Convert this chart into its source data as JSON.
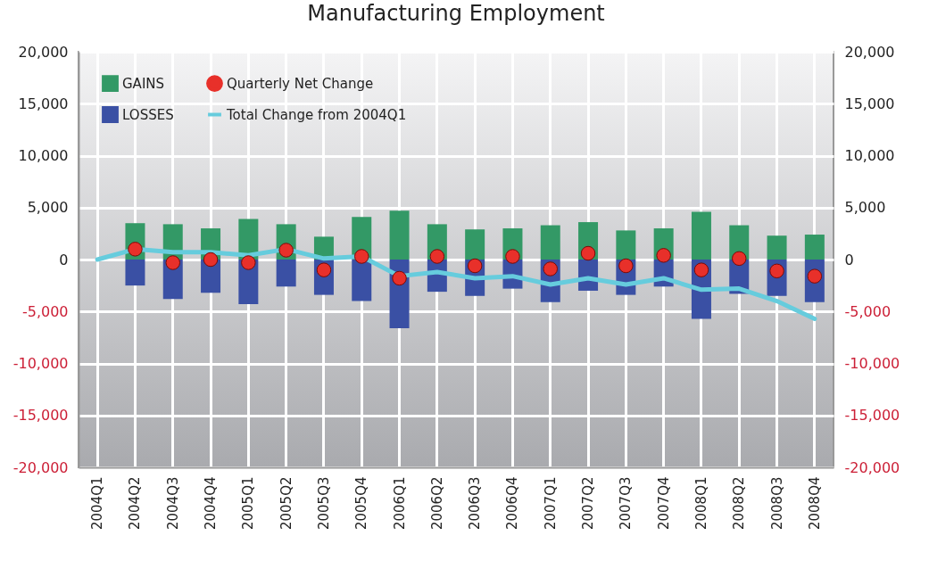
{
  "chart_data": {
    "type": "bar",
    "title": "Manufacturing Employment",
    "stacked": true,
    "categories": [
      "2004Q1",
      "2004Q2",
      "2004Q3",
      "2004Q4",
      "2005Q1",
      "2005Q2",
      "2005Q3",
      "2005Q4",
      "2006Q1",
      "2006Q2",
      "2006Q3",
      "2006Q4",
      "2007Q1",
      "2007Q2",
      "2007Q3",
      "2007Q4",
      "2008Q1",
      "2008Q2",
      "2008Q3",
      "2008Q4"
    ],
    "series": [
      {
        "name": "GAINS",
        "color": "#339966",
        "values": [
          null,
          3500,
          3400,
          3000,
          3900,
          3400,
          2200,
          4100,
          4700,
          3400,
          2900,
          3000,
          3300,
          3600,
          2800,
          3000,
          4600,
          3300,
          2300,
          2400
        ]
      },
      {
        "name": "LOSSES",
        "color": "#3a50a4",
        "values": [
          null,
          -2500,
          -3800,
          -3200,
          -4300,
          -2600,
          -3400,
          -4000,
          -6600,
          -3100,
          -3500,
          -2800,
          -4100,
          -3000,
          -3400,
          -2600,
          -5700,
          -3300,
          -3500,
          -4100
        ]
      },
      {
        "name": "Quarterly Net Change",
        "type": "scatter",
        "marker": "circle",
        "color": "#e8302a",
        "values": [
          null,
          1000,
          -300,
          0,
          -300,
          900,
          -1000,
          300,
          -1800,
          300,
          -600,
          300,
          -900,
          600,
          -600,
          400,
          -1000,
          100,
          -1100,
          -1600
        ]
      },
      {
        "name": "Total Change from 2004Q1",
        "type": "line",
        "marker": "none",
        "line_style": "solid",
        "color": "#66ccdd",
        "values": [
          0,
          1000,
          700,
          700,
          400,
          1000,
          100,
          300,
          -1600,
          -1200,
          -1800,
          -1600,
          -2400,
          -1800,
          -2400,
          -1800,
          -2900,
          -2800,
          -4000,
          -5700
        ]
      }
    ],
    "ylim": [
      -20000,
      20000
    ],
    "yticks": [
      {
        "value": -20000,
        "label": "-20,000"
      },
      {
        "value": -15000,
        "label": "-15,000"
      },
      {
        "value": -10000,
        "label": "-10,000"
      },
      {
        "value": -5000,
        "label": "-5,000"
      },
      {
        "value": 0,
        "label": "0"
      },
      {
        "value": 5000,
        "label": "5,000"
      },
      {
        "value": 10000,
        "label": "10,000"
      },
      {
        "value": 15000,
        "label": "15,000"
      },
      {
        "value": 20000,
        "label": "20,000"
      }
    ],
    "y2lim": [
      -20000,
      20000
    ],
    "y2ticks": [
      {
        "value": -20000,
        "label": "-20,000"
      },
      {
        "value": -15000,
        "label": "-15,000"
      },
      {
        "value": -10000,
        "label": "-10,000"
      },
      {
        "value": -5000,
        "label": "-5,000"
      },
      {
        "value": 0,
        "label": "0"
      },
      {
        "value": 5000,
        "label": "5,000"
      },
      {
        "value": 10000,
        "label": "10,000"
      },
      {
        "value": 15000,
        "label": "15,000"
      },
      {
        "value": 20000,
        "label": "20,000"
      }
    ],
    "grid": true,
    "legend": "top left"
  }
}
